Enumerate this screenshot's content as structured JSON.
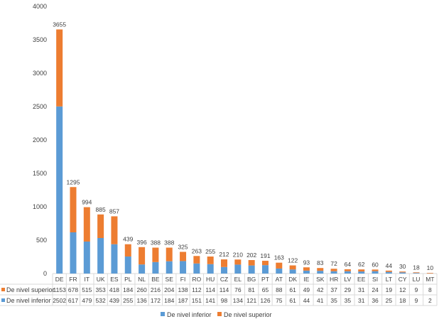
{
  "chart_data": {
    "type": "bar",
    "stacked": true,
    "categories": [
      "DE",
      "FR",
      "IT",
      "UK",
      "ES",
      "PL",
      "NL",
      "BE",
      "SE",
      "FI",
      "RO",
      "HU",
      "CZ",
      "EL",
      "BG",
      "PT",
      "AT",
      "DK",
      "IE",
      "SK",
      "HR",
      "LV",
      "EE",
      "SI",
      "LT",
      "CY",
      "LU",
      "MT"
    ],
    "series": [
      {
        "name": "De nivel inferior",
        "color": "#5B9BD5",
        "values": [
          2502,
          617,
          479,
          532,
          439,
          255,
          136,
          172,
          184,
          187,
          151,
          141,
          98,
          134,
          121,
          126,
          75,
          61,
          44,
          41,
          35,
          35,
          31,
          36,
          25,
          18,
          9,
          2
        ]
      },
      {
        "name": "De nivel superior",
        "color": "#ED7D31",
        "values": [
          1153,
          678,
          515,
          353,
          418,
          184,
          260,
          216,
          204,
          138,
          112,
          114,
          114,
          76,
          81,
          65,
          88,
          61,
          49,
          42,
          37,
          29,
          31,
          24,
          19,
          12,
          9,
          8
        ]
      }
    ],
    "totals": [
      3655,
      1295,
      994,
      885,
      857,
      439,
      396,
      388,
      388,
      325,
      263,
      255,
      212,
      210,
      202,
      191,
      163,
      122,
      93,
      83,
      72,
      64,
      62,
      60,
      44,
      30,
      18,
      10
    ],
    "ylim": [
      0,
      4000
    ],
    "yticks": [
      0,
      500,
      1000,
      1500,
      2000,
      2500,
      3000,
      3500,
      4000
    ],
    "grid": false,
    "data_table": true,
    "legend": "bottom"
  }
}
